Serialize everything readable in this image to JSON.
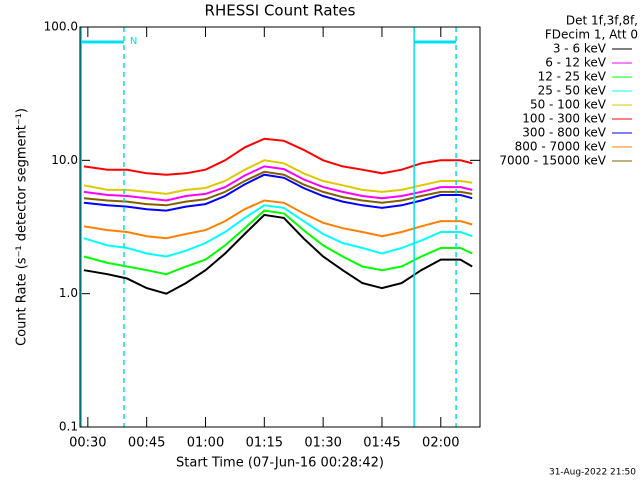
{
  "chart_data": {
    "type": "line",
    "title": "RHESSI Count Rates",
    "xlabel": "Start Time (07-Jun-16 00:28:42)",
    "ylabel": "Count Rate (s⁻¹ detector segment⁻¹)",
    "legend_header": [
      "Det 1f,3f,8f,",
      "FDecim 1, Att 0"
    ],
    "footer": "31-Aug-2022 21:50",
    "log_y": true,
    "xlim": [
      28,
      130
    ],
    "xticks": [
      {
        "value": 30,
        "label": "00:30"
      },
      {
        "value": 45,
        "label": "00:45"
      },
      {
        "value": 60,
        "label": "01:00"
      },
      {
        "value": 75,
        "label": "01:15"
      },
      {
        "value": 90,
        "label": "01:30"
      },
      {
        "value": 105,
        "label": "01:45"
      },
      {
        "value": 120,
        "label": "02:00"
      }
    ],
    "ylim": [
      0.1,
      100
    ],
    "yticks": [
      0.1,
      {
        "value": 1,
        "label": "1.0"
      },
      {
        "value": 10,
        "label": "10.0"
      },
      {
        "value": 100,
        "label": "100.0"
      }
    ],
    "intervals": [
      {
        "start": 28.3,
        "end": 39.2,
        "label": "N",
        "color": "#00e0f0"
      },
      {
        "start": 113.2,
        "end": 123.9,
        "color": "#00e0f0"
      }
    ],
    "x": [
      29,
      35,
      40,
      45,
      50,
      55,
      60,
      65,
      70,
      75,
      80,
      85,
      90,
      95,
      100,
      105,
      110,
      115,
      120,
      125,
      128
    ],
    "series": [
      {
        "name": "3 - 6 keV",
        "color": "#000000",
        "values": [
          1.5,
          1.4,
          1.3,
          1.1,
          1,
          1.2,
          1.5,
          2,
          2.8,
          3.9,
          3.7,
          2.6,
          1.9,
          1.5,
          1.2,
          1.1,
          1.2,
          1.5,
          1.8,
          1.8,
          1.6
        ]
      },
      {
        "name": "6 - 12 keV",
        "color": "#ff00ff",
        "values": [
          5.8,
          5.5,
          5.4,
          5.2,
          5,
          5.4,
          5.6,
          6.3,
          7.7,
          9,
          8.6,
          7.2,
          6.3,
          5.8,
          5.4,
          5.2,
          5.4,
          5.8,
          6.3,
          6.3,
          6
        ]
      },
      {
        "name": "12 - 25 keV",
        "color": "#00ff00",
        "values": [
          1.9,
          1.7,
          1.6,
          1.5,
          1.4,
          1.6,
          1.8,
          2.3,
          3.1,
          4.2,
          4,
          3,
          2.3,
          1.9,
          1.6,
          1.5,
          1.6,
          1.9,
          2.2,
          2.2,
          2
        ]
      },
      {
        "name": "25 - 50 keV",
        "color": "#00ffff",
        "values": [
          2.6,
          2.3,
          2.2,
          2,
          1.9,
          2.1,
          2.4,
          2.9,
          3.7,
          4.6,
          4.4,
          3.5,
          2.8,
          2.4,
          2.2,
          2,
          2.2,
          2.5,
          2.9,
          2.9,
          2.7
        ]
      },
      {
        "name": "50 - 100 keV",
        "color": "#e0c800",
        "values": [
          6.5,
          6,
          6,
          5.8,
          5.6,
          6,
          6.2,
          7,
          8.5,
          10,
          9.5,
          8,
          7,
          6.5,
          6,
          5.8,
          6,
          6.5,
          7,
          7,
          6.8
        ]
      },
      {
        "name": "100 - 300 keV",
        "color": "#ff0000",
        "values": [
          9,
          8.5,
          8.5,
          8,
          7.8,
          8,
          8.5,
          10,
          12.5,
          14.5,
          14,
          12,
          10,
          9,
          8.5,
          8,
          8.5,
          9.5,
          10,
          10,
          9.5
        ]
      },
      {
        "name": "300 - 800 keV",
        "color": "#0000ff",
        "values": [
          4.8,
          4.6,
          4.5,
          4.3,
          4.2,
          4.5,
          4.7,
          5.4,
          6.6,
          7.8,
          7.4,
          6.2,
          5.4,
          4.9,
          4.6,
          4.4,
          4.6,
          5,
          5.5,
          5.5,
          5.2
        ]
      },
      {
        "name": "800 - 7000 keV",
        "color": "#ff8000",
        "values": [
          3.2,
          3,
          2.9,
          2.7,
          2.6,
          2.8,
          3,
          3.5,
          4.3,
          5,
          4.8,
          4,
          3.4,
          3.1,
          2.9,
          2.7,
          2.9,
          3.2,
          3.5,
          3.5,
          3.3
        ]
      },
      {
        "name": "7000 - 15000 keV",
        "color": "#806000",
        "values": [
          5.2,
          5,
          4.9,
          4.7,
          4.6,
          4.9,
          5.1,
          5.8,
          7,
          8.2,
          7.8,
          6.6,
          5.8,
          5.3,
          5,
          4.8,
          5,
          5.4,
          5.8,
          5.8,
          5.6
        ]
      }
    ]
  }
}
